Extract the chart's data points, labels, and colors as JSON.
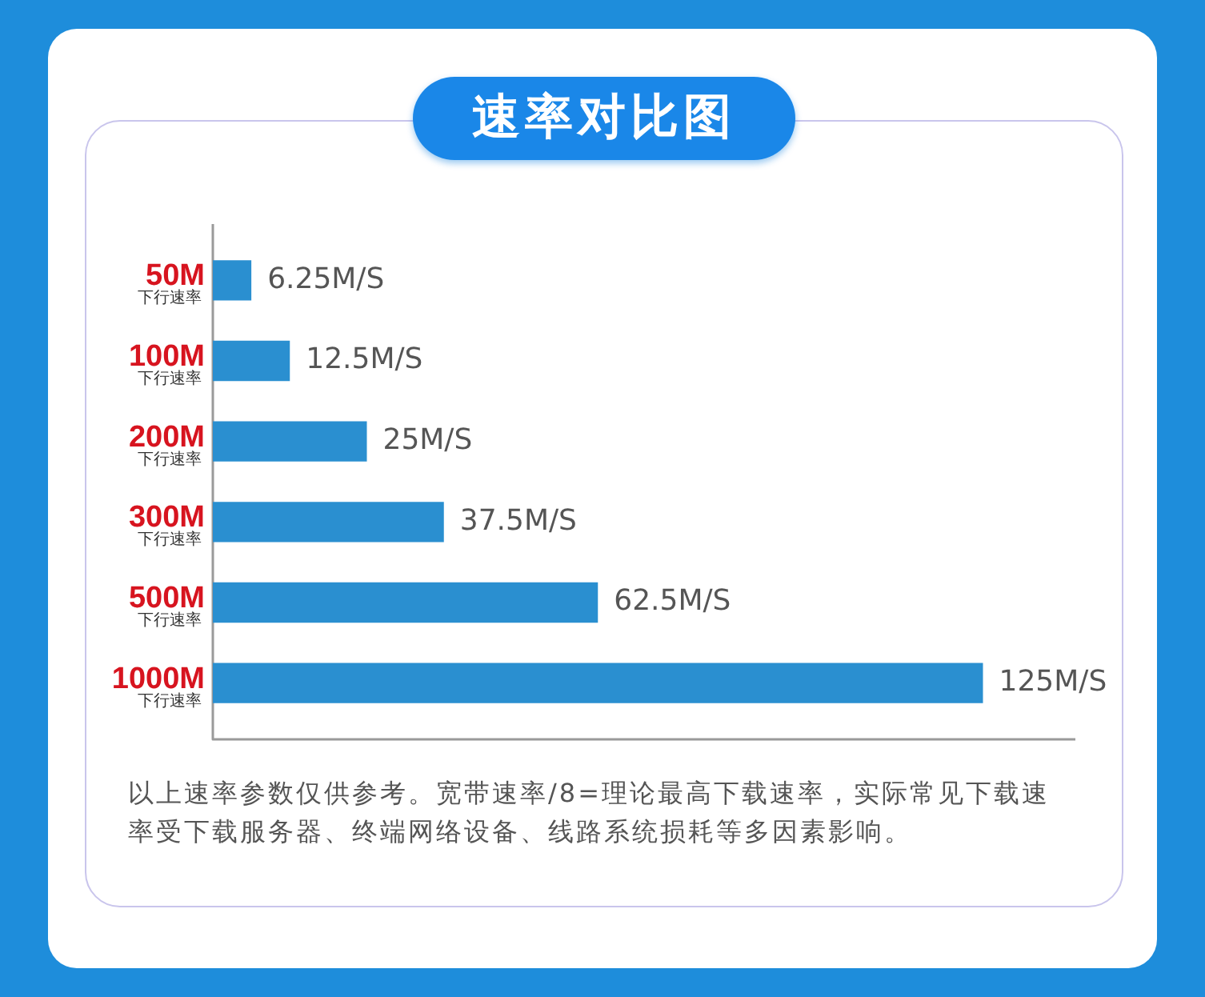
{
  "chart_data": {
    "type": "bar",
    "orientation": "horizontal",
    "title": "速率对比图",
    "categories": [
      "50M\n下行速率",
      "100M\n下行速率",
      "200M\n下行速率",
      "300M\n下行速率",
      "500M\n下行速率",
      "1000M\n下行速率"
    ],
    "values": [
      6.25,
      12.5,
      25,
      37.5,
      62.5,
      125
    ],
    "value_labels": [
      "6.25M/S",
      "12.5M/S",
      "25M/S",
      "37.5M/S",
      "62.5M/S",
      "125M/S"
    ],
    "color": "#2a8fd0",
    "grid": false,
    "legend": false,
    "tick_labels": "y",
    "annotations": [
      "以上速率参数仅供参考。宽带速率/8=理论最高下载速率，实际常见下载速率受下载服务器、终端网络设备、线路系统损耗等多因素影响。"
    ]
  }
}
